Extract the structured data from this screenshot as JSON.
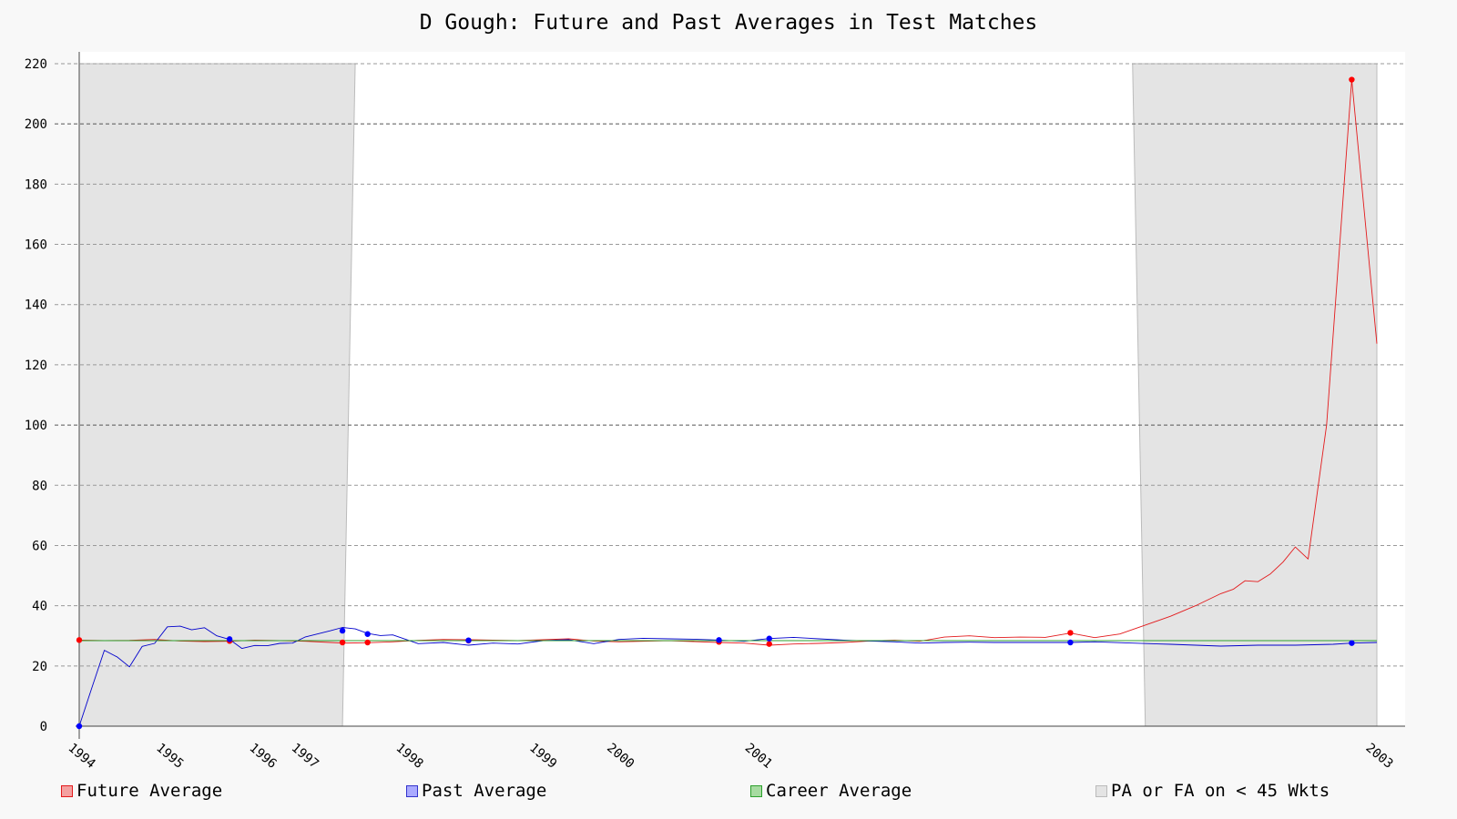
{
  "chart_data": {
    "type": "line",
    "title": "D Gough: Future and Past Averages in Test Matches",
    "xlabel": "",
    "ylabel": "",
    "x_range": [
      "1994-06-01",
      "2003-01-15"
    ],
    "ylim": [
      0,
      220
    ],
    "y_ticks": [
      0,
      20,
      40,
      60,
      80,
      100,
      120,
      140,
      160,
      180,
      200,
      220
    ],
    "x_ticks": [
      {
        "label": "1994",
        "date": "1994-06-01"
      },
      {
        "label": "1995",
        "date": "1995-01-01"
      },
      {
        "label": "1996",
        "date": "1995-08-15"
      },
      {
        "label": "1997",
        "date": "1995-11-25"
      },
      {
        "label": "1998",
        "date": "1996-08-05"
      },
      {
        "label": "1999",
        "date": "1997-06-25"
      },
      {
        "label": "2000",
        "date": "1997-12-30"
      },
      {
        "label": "2001",
        "date": "1998-11-30"
      },
      {
        "label": "2003",
        "date": "2003-01-15"
      }
    ],
    "grid": "horizontal dashed",
    "legend_position": "bottom",
    "shaded_regions": [
      {
        "start": "1994-06-01",
        "end": "1996-03-01",
        "note": "PA or FA on < 45 Wkts"
      },
      {
        "start": "2001-06-01",
        "end": "2003-01-15",
        "note": "PA or FA on < 45 Wkts"
      }
    ],
    "series": [
      {
        "name": "Future Average",
        "color": "#e31a1c",
        "points": [
          [
            "1994-06-01",
            28.6
          ],
          [
            "1994-08-01",
            28.4
          ],
          [
            "1994-10-01",
            28.5
          ],
          [
            "1994-12-01",
            28.8
          ],
          [
            "1995-02-01",
            28.3
          ],
          [
            "1995-04-01",
            28.1
          ],
          [
            "1995-06-01",
            28.2
          ],
          [
            "1995-08-01",
            28.6
          ],
          [
            "1995-10-01",
            28.4
          ],
          [
            "1995-12-01",
            28.2
          ],
          [
            "1996-02-01",
            27.8
          ],
          [
            "1996-03-01",
            27.6
          ],
          [
            "1996-05-01",
            27.7
          ],
          [
            "1996-07-01",
            28.0
          ],
          [
            "1996-09-01",
            28.5
          ],
          [
            "1996-11-01",
            28.8
          ],
          [
            "1997-01-01",
            28.7
          ],
          [
            "1997-03-01",
            28.6
          ],
          [
            "1997-05-01",
            28.4
          ],
          [
            "1997-07-01",
            28.7
          ],
          [
            "1997-09-01",
            29.0
          ],
          [
            "1997-11-01",
            28.3
          ],
          [
            "1998-01-01",
            28.0
          ],
          [
            "1998-03-01",
            28.2
          ],
          [
            "1998-05-01",
            28.4
          ],
          [
            "1998-07-01",
            28.1
          ],
          [
            "1998-09-01",
            27.8
          ],
          [
            "1998-11-01",
            27.6
          ],
          [
            "1999-01-01",
            26.9
          ],
          [
            "1999-03-01",
            27.3
          ],
          [
            "1999-05-01",
            27.5
          ],
          [
            "1999-07-01",
            27.8
          ],
          [
            "1999-09-01",
            28.3
          ],
          [
            "1999-11-01",
            28.6
          ],
          [
            "2000-01-01",
            28.2
          ],
          [
            "2000-03-01",
            29.6
          ],
          [
            "2000-05-01",
            30.0
          ],
          [
            "2000-07-01",
            29.4
          ],
          [
            "2000-09-01",
            29.6
          ],
          [
            "2000-11-01",
            29.5
          ],
          [
            "2001-01-01",
            30.9
          ],
          [
            "2001-03-01",
            29.4
          ],
          [
            "2001-05-01",
            30.6
          ],
          [
            "2001-07-01",
            33.5
          ],
          [
            "2001-09-01",
            36.5
          ],
          [
            "2001-11-01",
            40.0
          ],
          [
            "2002-01-01",
            44.0
          ],
          [
            "2002-02-01",
            45.5
          ],
          [
            "2002-03-01",
            48.3
          ],
          [
            "2002-04-01",
            48.0
          ],
          [
            "2002-05-01",
            50.5
          ],
          [
            "2002-06-01",
            54.5
          ],
          [
            "2002-07-01",
            59.5
          ],
          [
            "2002-08-01",
            55.5
          ],
          [
            "2002-09-15",
            100.0
          ],
          [
            "2002-11-15",
            214.7
          ],
          [
            "2003-01-15",
            127.0
          ]
        ]
      },
      {
        "name": "Past Average",
        "color": "#0000cc",
        "points": [
          [
            "1994-06-01",
            0.0
          ],
          [
            "1994-07-01",
            12.5
          ],
          [
            "1994-08-01",
            25.2
          ],
          [
            "1994-09-01",
            23.0
          ],
          [
            "1994-10-01",
            19.7
          ],
          [
            "1994-11-01",
            26.5
          ],
          [
            "1994-12-01",
            27.5
          ],
          [
            "1995-01-01",
            33.0
          ],
          [
            "1995-02-01",
            33.2
          ],
          [
            "1995-03-01",
            32.0
          ],
          [
            "1995-04-01",
            32.7
          ],
          [
            "1995-05-01",
            30.0
          ],
          [
            "1995-06-01",
            28.8
          ],
          [
            "1995-07-01",
            25.8
          ],
          [
            "1995-08-01",
            26.8
          ],
          [
            "1995-09-01",
            26.7
          ],
          [
            "1995-10-01",
            27.5
          ],
          [
            "1995-11-01",
            27.6
          ],
          [
            "1995-12-01",
            29.6
          ],
          [
            "1996-02-01",
            31.7
          ],
          [
            "1996-03-01",
            32.8
          ],
          [
            "1996-04-01",
            32.3
          ],
          [
            "1996-05-01",
            30.8
          ],
          [
            "1996-06-01",
            30.1
          ],
          [
            "1996-07-01",
            30.3
          ],
          [
            "1996-09-01",
            27.4
          ],
          [
            "1996-11-01",
            27.8
          ],
          [
            "1997-01-01",
            26.9
          ],
          [
            "1997-03-01",
            27.6
          ],
          [
            "1997-05-01",
            27.3
          ],
          [
            "1997-07-01",
            28.4
          ],
          [
            "1997-09-01",
            28.7
          ],
          [
            "1997-11-01",
            27.4
          ],
          [
            "1998-01-01",
            28.8
          ],
          [
            "1998-03-01",
            29.2
          ],
          [
            "1998-05-01",
            29.0
          ],
          [
            "1998-07-01",
            28.9
          ],
          [
            "1998-09-01",
            28.6
          ],
          [
            "1998-11-01",
            28.2
          ],
          [
            "1999-01-01",
            29.1
          ],
          [
            "1999-03-01",
            29.5
          ],
          [
            "1999-05-01",
            29.0
          ],
          [
            "1999-07-01",
            28.6
          ],
          [
            "1999-09-01",
            28.3
          ],
          [
            "1999-11-01",
            28.0
          ],
          [
            "2000-01-01",
            27.6
          ],
          [
            "2000-03-01",
            27.8
          ],
          [
            "2000-05-01",
            27.9
          ],
          [
            "2000-07-01",
            27.8
          ],
          [
            "2000-09-01",
            27.8
          ],
          [
            "2000-11-01",
            27.8
          ],
          [
            "2001-01-01",
            27.8
          ],
          [
            "2001-03-01",
            28.0
          ],
          [
            "2001-06-01",
            27.6
          ],
          [
            "2001-09-01",
            27.2
          ],
          [
            "2002-01-01",
            26.6
          ],
          [
            "2002-04-01",
            26.9
          ],
          [
            "2002-07-01",
            26.9
          ],
          [
            "2002-10-01",
            27.2
          ],
          [
            "2002-11-15",
            27.6
          ],
          [
            "2003-01-15",
            27.8
          ]
        ]
      },
      {
        "name": "Career Average",
        "color": "#2ca02c",
        "points": [
          [
            "1994-06-01",
            28.4
          ],
          [
            "2003-01-15",
            28.4
          ]
        ]
      }
    ],
    "markers": [
      {
        "series": "Future Average",
        "color": "#ff0000",
        "points": [
          [
            "1994-06-01",
            28.6
          ],
          [
            "1995-06-01",
            28.3
          ],
          [
            "1996-03-01",
            27.8
          ],
          [
            "1996-05-01",
            27.8
          ],
          [
            "1997-01-01",
            28.4
          ],
          [
            "1998-09-01",
            28.0
          ],
          [
            "1999-01-01",
            27.3
          ],
          [
            "2001-01-01",
            31.0
          ],
          [
            "2002-11-15",
            214.7
          ]
        ]
      },
      {
        "series": "Past Average",
        "color": "#0000ff",
        "points": [
          [
            "1994-06-01",
            0.0
          ],
          [
            "1995-06-01",
            28.9
          ],
          [
            "1996-03-01",
            31.7
          ],
          [
            "1996-05-01",
            30.6
          ],
          [
            "1997-01-01",
            28.5
          ],
          [
            "1998-09-01",
            28.6
          ],
          [
            "1999-01-01",
            29.1
          ],
          [
            "2001-01-01",
            27.8
          ],
          [
            "2002-11-15",
            27.6
          ]
        ]
      }
    ],
    "legend": [
      {
        "label": "Future Average",
        "color": "#f4a0a0",
        "border": "#e31a1c"
      },
      {
        "label": "Past Average",
        "color": "#aaaaff",
        "border": "#3333cc"
      },
      {
        "label": "Career Average",
        "color": "#a6dba0",
        "border": "#2ca02c"
      },
      {
        "label": "PA or FA on < 45 Wkts",
        "color": "#e4e4e4",
        "border": "#bbbbbb"
      }
    ]
  }
}
